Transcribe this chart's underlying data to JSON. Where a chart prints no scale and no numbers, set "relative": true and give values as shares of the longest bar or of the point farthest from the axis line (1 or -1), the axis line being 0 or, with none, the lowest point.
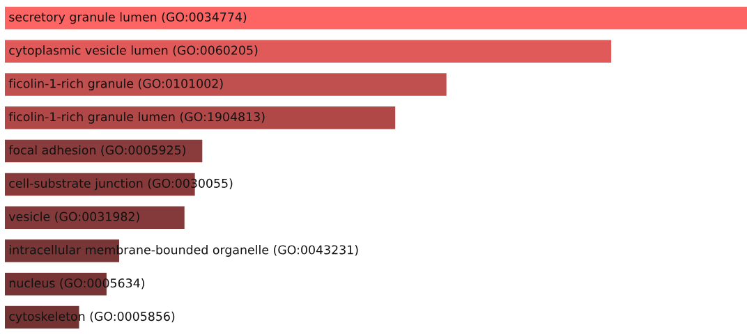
{
  "chart_data": {
    "type": "bar",
    "orientation": "horizontal",
    "relative": true,
    "categories": [
      "secretory granule lumen (GO:0034774)",
      "cytoplasmic vesicle lumen (GO:0060205)",
      "ficolin-1-rich granule (GO:0101002)",
      "ficolin-1-rich granule lumen (GO:1904813)",
      "focal adhesion (GO:0005925)",
      "cell-substrate junction (GO:0030055)",
      "vesicle (GO:0031982)",
      "intracellular membrane-bounded organelle (GO:0043231)",
      "nucleus (GO:0005634)",
      "cytoskeleton (GO:0005856)"
    ],
    "values": [
      1,
      0.817,
      0.595,
      0.526,
      0.266,
      0.256,
      0.242,
      0.154,
      0.137,
      0.1
    ],
    "colors": [
      "#fd6464",
      "#e05a5a",
      "#c05050",
      "#b04848",
      "#8a3c3c",
      "#883a3a",
      "#843a3a",
      "#783636",
      "#763434",
      "#733333"
    ]
  }
}
